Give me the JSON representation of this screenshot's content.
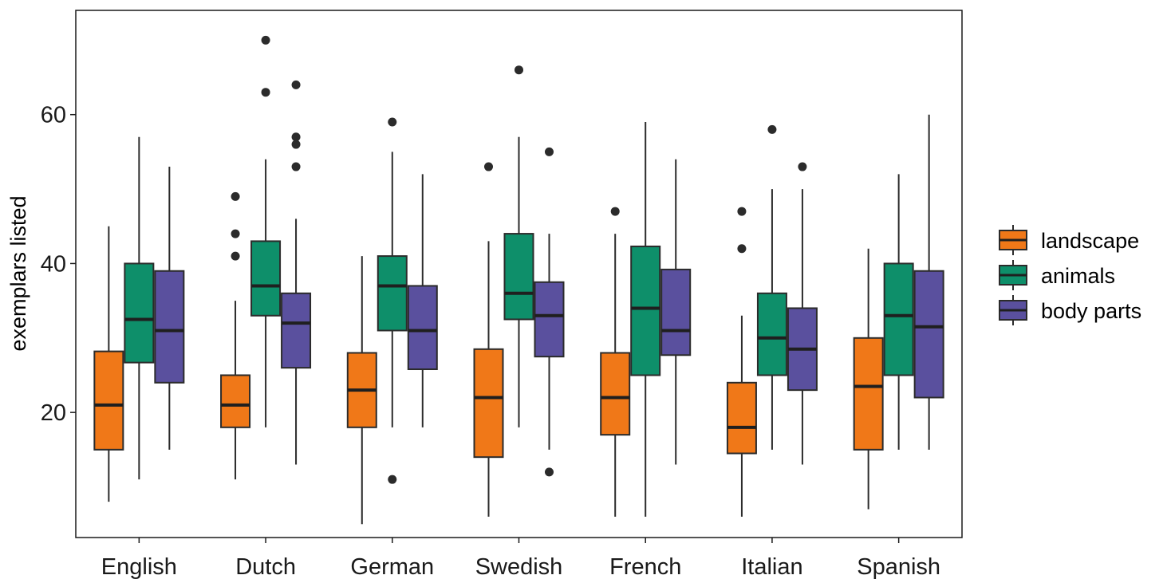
{
  "chart_data": {
    "type": "boxplot",
    "xlabel": "",
    "ylabel": "exemplars listed",
    "ylim": [
      3.2,
      74
    ],
    "yticks": [
      20,
      40,
      60
    ],
    "grid": false,
    "legend_position": "right",
    "categories": [
      "English",
      "Dutch",
      "German",
      "Swedish",
      "French",
      "Italian",
      "Spanish"
    ],
    "series": [
      {
        "name": "landscape",
        "color": "#f07818",
        "boxes": [
          {
            "whisker_low": 8,
            "q1": 15,
            "median": 21,
            "q3": 28.2,
            "whisker_high": 45,
            "outliers": []
          },
          {
            "whisker_low": 11,
            "q1": 18,
            "median": 21,
            "q3": 25,
            "whisker_high": 35,
            "outliers": [
              41,
              44,
              49
            ]
          },
          {
            "whisker_low": 5,
            "q1": 18,
            "median": 23,
            "q3": 28,
            "whisker_high": 41,
            "outliers": []
          },
          {
            "whisker_low": 6,
            "q1": 14,
            "median": 22,
            "q3": 28.5,
            "whisker_high": 43,
            "outliers": [
              53
            ]
          },
          {
            "whisker_low": 6,
            "q1": 17,
            "median": 22,
            "q3": 28,
            "whisker_high": 44,
            "outliers": [
              47
            ]
          },
          {
            "whisker_low": 6,
            "q1": 14.5,
            "median": 18,
            "q3": 24,
            "whisker_high": 33,
            "outliers": [
              42,
              47
            ]
          },
          {
            "whisker_low": 7,
            "q1": 15,
            "median": 23.5,
            "q3": 30,
            "whisker_high": 42,
            "outliers": []
          }
        ]
      },
      {
        "name": "animals",
        "color": "#0e8f6a",
        "boxes": [
          {
            "whisker_low": 11,
            "q1": 26.7,
            "median": 32.5,
            "q3": 40,
            "whisker_high": 57,
            "outliers": []
          },
          {
            "whisker_low": 18,
            "q1": 33,
            "median": 37,
            "q3": 43,
            "whisker_high": 54,
            "outliers": [
              63,
              70
            ]
          },
          {
            "whisker_low": 18,
            "q1": 31,
            "median": 37,
            "q3": 41,
            "whisker_high": 55,
            "outliers": [
              11,
              59
            ]
          },
          {
            "whisker_low": 18,
            "q1": 32.5,
            "median": 36,
            "q3": 44,
            "whisker_high": 57,
            "outliers": [
              66
            ]
          },
          {
            "whisker_low": 6,
            "q1": 25,
            "median": 34,
            "q3": 42.3,
            "whisker_high": 59,
            "outliers": []
          },
          {
            "whisker_low": 15,
            "q1": 25,
            "median": 30,
            "q3": 36,
            "whisker_high": 50,
            "outliers": [
              58
            ]
          },
          {
            "whisker_low": 15,
            "q1": 25,
            "median": 33,
            "q3": 40,
            "whisker_high": 52,
            "outliers": []
          }
        ]
      },
      {
        "name": "body parts",
        "color": "#5a509e",
        "boxes": [
          {
            "whisker_low": 15,
            "q1": 24,
            "median": 31,
            "q3": 39,
            "whisker_high": 53,
            "outliers": []
          },
          {
            "whisker_low": 13,
            "q1": 26,
            "median": 32,
            "q3": 36,
            "whisker_high": 46,
            "outliers": [
              53,
              56,
              57,
              64
            ]
          },
          {
            "whisker_low": 18,
            "q1": 25.8,
            "median": 31,
            "q3": 37,
            "whisker_high": 52,
            "outliers": []
          },
          {
            "whisker_low": 15,
            "q1": 27.5,
            "median": 33,
            "q3": 37.5,
            "whisker_high": 44,
            "outliers": [
              12,
              55
            ]
          },
          {
            "whisker_low": 13,
            "q1": 27.7,
            "median": 31,
            "q3": 39.2,
            "whisker_high": 54,
            "outliers": []
          },
          {
            "whisker_low": 13,
            "q1": 23,
            "median": 28.5,
            "q3": 34,
            "whisker_high": 50,
            "outliers": [
              53
            ]
          },
          {
            "whisker_low": 15,
            "q1": 22,
            "median": 31.5,
            "q3": 39,
            "whisker_high": 60,
            "outliers": []
          }
        ]
      }
    ]
  }
}
